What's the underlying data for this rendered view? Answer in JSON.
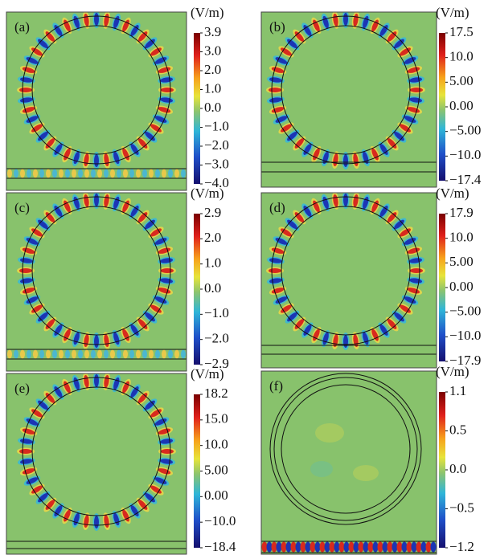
{
  "panels": [
    {
      "label": "(a)",
      "unit": "(V/m)",
      "ticks": [
        "3.9",
        "3.0",
        "2.0",
        "1.0",
        "0.0",
        "−1.0",
        "−2.0",
        "−3.0",
        "−4.0"
      ]
    },
    {
      "label": "(b)",
      "unit": "(V/m)",
      "ticks": [
        "17.5",
        "10.0",
        "5.00",
        "0.00",
        "−5.00",
        "−10.0",
        "−17.4"
      ]
    },
    {
      "label": "(c)",
      "unit": "(V/m)",
      "ticks": [
        "2.9",
        "2.0",
        "1.0",
        "0.0",
        "−1.0",
        "−2.0",
        "−2.9"
      ]
    },
    {
      "label": "(d)",
      "unit": "(V/m)",
      "ticks": [
        "17.9",
        "10.0",
        "5.00",
        "0.00",
        "−5.00",
        "−10.0",
        "−17.9"
      ]
    },
    {
      "label": "(e)",
      "unit": "(V/m)",
      "ticks": [
        "18.2",
        "15.0",
        "10.0",
        "5.00",
        "0.00",
        "−10.0",
        "−18.4"
      ]
    },
    {
      "label": "(f)",
      "unit": "(V/m)",
      "ticks": [
        "1.1",
        "0.5",
        "0.0",
        "−0.5",
        "−1.2"
      ]
    }
  ]
}
